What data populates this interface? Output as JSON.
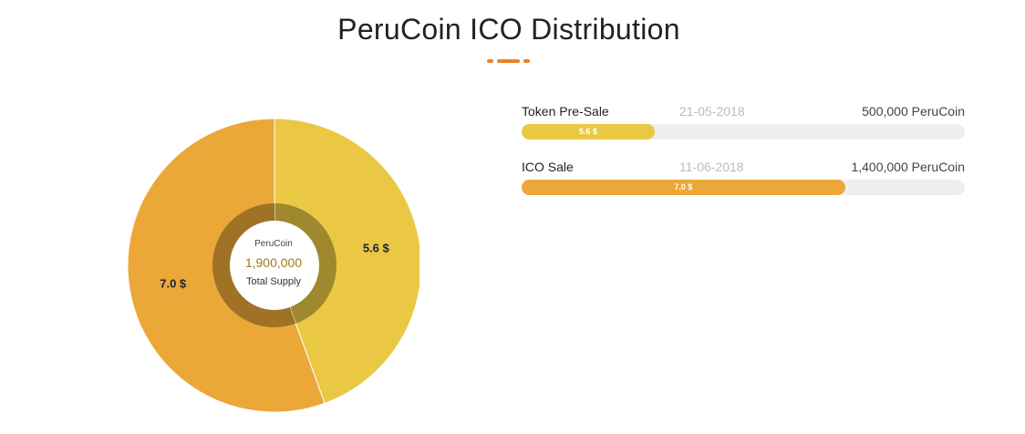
{
  "title": "PeruCoin ICO Distribution",
  "colors": {
    "presale": "#eac844",
    "ico": "#eba838",
    "accent": "#e8822e",
    "track": "#efefef"
  },
  "center": {
    "top": "PeruCoin",
    "value": "1,900,000",
    "bottom": "Total Supply"
  },
  "progress": [
    {
      "label": "Token Pre-Sale",
      "date": "21-05-2018",
      "amount": "500,000 PeruCoin",
      "fill_label": "5.6 $",
      "fill_fraction": 0.3
    },
    {
      "label": "ICO Sale",
      "date": "11-06-2018",
      "amount": "1,400,000 PeruCoin",
      "fill_label": "7.0 $",
      "fill_fraction": 0.73
    }
  ],
  "chart_data": {
    "type": "pie",
    "title": "PeruCoin ICO Distribution",
    "slices": [
      {
        "label": "5.6 $",
        "value": 5.6,
        "color": "#eac844"
      },
      {
        "label": "7.0 $",
        "value": 7.0,
        "color": "#eba838"
      }
    ]
  }
}
